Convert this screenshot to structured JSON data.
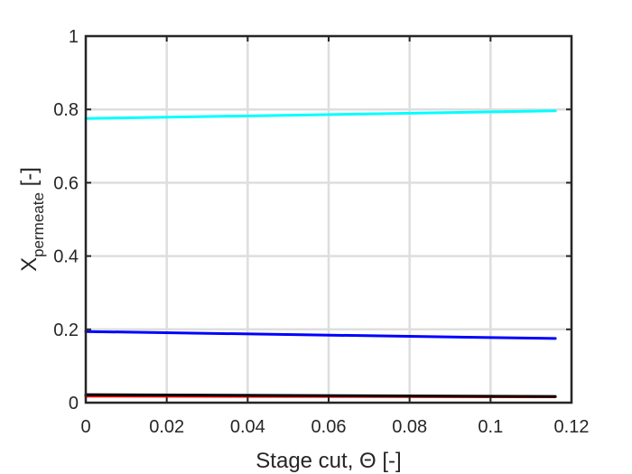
{
  "chart_data": {
    "type": "line",
    "xlabel": "Stage cut, Θ [-]",
    "ylabel": {
      "base": "X",
      "subscript": "permeate",
      "unit": " [-]"
    },
    "xlim": [
      0,
      0.12
    ],
    "ylim": [
      0,
      1
    ],
    "xticks": [
      0,
      0.02,
      0.04,
      0.06,
      0.08,
      0.1,
      0.12
    ],
    "xtick_labels": [
      "0",
      "0.02",
      "0.04",
      "0.06",
      "0.08",
      "0.1",
      "0.12"
    ],
    "yticks": [
      0,
      0.2,
      0.4,
      0.6,
      0.8,
      1
    ],
    "ytick_labels": [
      "0",
      "0.2",
      "0.4",
      "0.6",
      "0.8",
      "1"
    ],
    "grid": true,
    "series": [
      {
        "color": "#00ffff",
        "x": [
          0,
          0.116
        ],
        "y": [
          0.775,
          0.796
        ]
      },
      {
        "color": "#0000ff",
        "x": [
          0,
          0.116
        ],
        "y": [
          0.194,
          0.175
        ]
      },
      {
        "color": "#ff0000",
        "x": [
          0,
          0.116
        ],
        "y": [
          0.018,
          0.016
        ]
      },
      {
        "color": "#000000",
        "x": [
          0,
          0.116
        ],
        "y": [
          0.022,
          0.017
        ]
      }
    ]
  }
}
